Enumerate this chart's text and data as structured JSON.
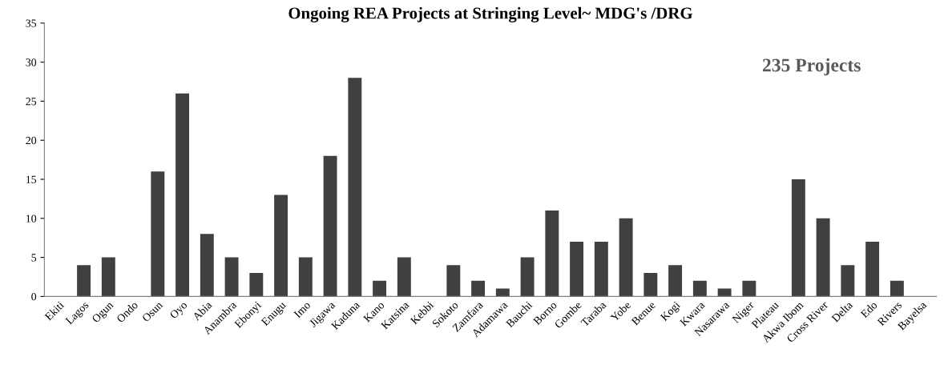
{
  "chart_data": {
    "type": "bar",
    "title": "Ongoing REA Projects at Stringing Level~ MDG's /DRG",
    "categories": [
      "Ekiti",
      "Lagos",
      "Ogun",
      "Ondo",
      "Osun",
      "Oyo",
      "Abia",
      "Anambra",
      "Ebonyi",
      "Enugu",
      "Imo",
      "Jigawa",
      "Kaduna",
      "Kano",
      "Katsina",
      "Kebbi",
      "Sokoto",
      "Zamfara",
      "Adamawa",
      "Bauchi",
      "Borno",
      "Gombe",
      "Taraba",
      "Yobe",
      "Benue",
      "Kogi",
      "Kwara",
      "Nasarawa",
      "Niger",
      "Plateau",
      "Akwa Ibom",
      "Cross River",
      "Delta",
      "Edo",
      "Rivers",
      "Bayelsa"
    ],
    "values": [
      0,
      4,
      5,
      0,
      16,
      26,
      8,
      5,
      3,
      13,
      5,
      18,
      28,
      2,
      5,
      0,
      4,
      2,
      1,
      5,
      11,
      7,
      7,
      10,
      3,
      4,
      2,
      1,
      2,
      0,
      15,
      10,
      4,
      7,
      2,
      0
    ],
    "color": "#404040",
    "ylim": [
      0,
      35
    ],
    "yticks": [
      0,
      5,
      10,
      15,
      20,
      25,
      30,
      35
    ],
    "grid": false,
    "annotations": [
      "235 Projects"
    ]
  }
}
